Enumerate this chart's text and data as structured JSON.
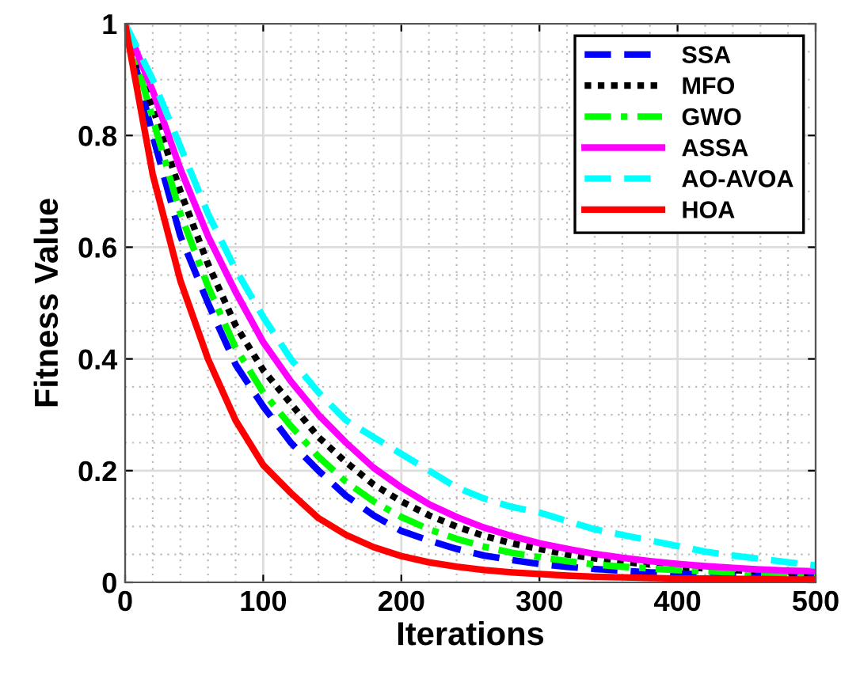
{
  "chart_data": {
    "type": "line",
    "xlabel": "Iterations",
    "ylabel": "Fitness Value",
    "x": [
      0,
      20,
      40,
      60,
      80,
      100,
      120,
      140,
      160,
      180,
      200,
      220,
      240,
      260,
      280,
      300,
      320,
      340,
      360,
      380,
      400,
      420,
      440,
      460,
      480,
      500
    ],
    "xlim": [
      0,
      500
    ],
    "xticks": [
      0,
      100,
      200,
      300,
      400,
      500
    ],
    "ylim": [
      0,
      1
    ],
    "yticks": [
      0,
      0.2,
      0.4,
      0.6,
      0.8,
      1
    ],
    "grid": true,
    "legend": "top right",
    "series": [
      {
        "name": "SSA",
        "color": "#0000ff",
        "line_style": "dashed",
        "values": [
          1.0,
          0.8,
          0.62,
          0.5,
          0.39,
          0.315,
          0.25,
          0.2,
          0.155,
          0.12,
          0.092,
          0.075,
          0.06,
          0.048,
          0.04,
          0.033,
          0.028,
          0.024,
          0.021,
          0.018,
          0.016,
          0.014,
          0.013,
          0.012,
          0.011,
          0.01
        ]
      },
      {
        "name": "MFO",
        "color": "#000000",
        "line_style": "dotted",
        "values": [
          1.0,
          0.85,
          0.7,
          0.57,
          0.46,
          0.38,
          0.32,
          0.26,
          0.215,
          0.175,
          0.145,
          0.12,
          0.1,
          0.083,
          0.07,
          0.06,
          0.05,
          0.043,
          0.037,
          0.032,
          0.028,
          0.025,
          0.022,
          0.02,
          0.018,
          0.017
        ]
      },
      {
        "name": "GWO",
        "color": "#00ff00",
        "line_style": "dashdot",
        "values": [
          1.0,
          0.83,
          0.66,
          0.53,
          0.42,
          0.34,
          0.28,
          0.225,
          0.18,
          0.145,
          0.117,
          0.095,
          0.078,
          0.064,
          0.053,
          0.045,
          0.038,
          0.032,
          0.028,
          0.025,
          0.022,
          0.02,
          0.018,
          0.017,
          0.016,
          0.015
        ]
      },
      {
        "name": "ASSA",
        "color": "#ff00ff",
        "line_style": "solid",
        "values": [
          1.0,
          0.88,
          0.74,
          0.62,
          0.52,
          0.43,
          0.36,
          0.3,
          0.25,
          0.205,
          0.17,
          0.14,
          0.117,
          0.098,
          0.083,
          0.07,
          0.06,
          0.051,
          0.044,
          0.038,
          0.033,
          0.029,
          0.026,
          0.023,
          0.021,
          0.02
        ]
      },
      {
        "name": "AO-AVOA",
        "color": "#00ffff",
        "line_style": "dashed",
        "values": [
          1.0,
          0.9,
          0.78,
          0.66,
          0.56,
          0.475,
          0.4,
          0.34,
          0.29,
          0.26,
          0.23,
          0.2,
          0.17,
          0.15,
          0.135,
          0.125,
          0.11,
          0.095,
          0.085,
          0.075,
          0.065,
          0.055,
          0.048,
          0.042,
          0.036,
          0.03
        ]
      },
      {
        "name": "HOA",
        "color": "#ff0000",
        "line_style": "solid",
        "values": [
          1.0,
          0.73,
          0.54,
          0.4,
          0.29,
          0.21,
          0.16,
          0.115,
          0.085,
          0.063,
          0.047,
          0.036,
          0.028,
          0.022,
          0.018,
          0.015,
          0.012,
          0.01,
          0.009,
          0.008,
          0.007,
          0.007,
          0.006,
          0.006,
          0.005,
          0.005
        ]
      }
    ]
  }
}
